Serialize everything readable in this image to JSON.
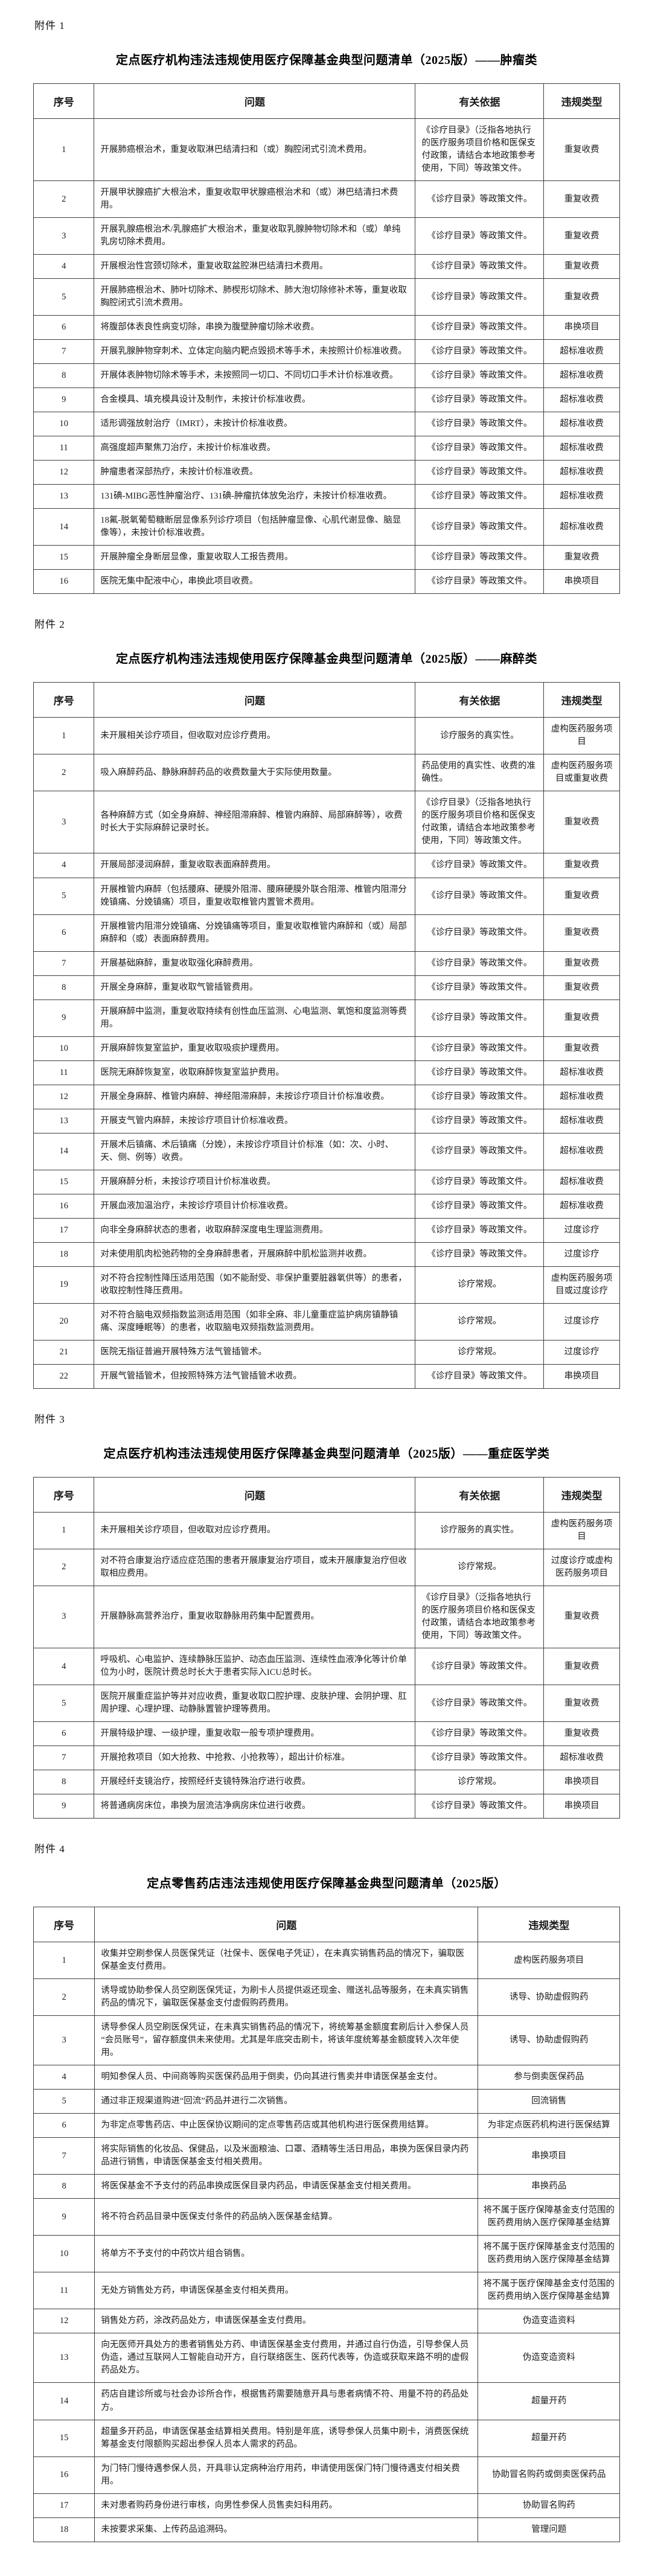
{
  "sections": [
    {
      "attachment_label": "附件 1",
      "title": "定点医疗机构违法违规使用医疗保障基金典型问题清单（2025版）——肿瘤类",
      "columns": [
        "序号",
        "问题",
        "有关依据",
        "违规类型"
      ],
      "col_widths": [
        "9.8%",
        "55.9%",
        "21.8%",
        "12.5%"
      ],
      "col_align": [
        "center",
        "left",
        "center",
        "center"
      ],
      "wrap_left_col": 2,
      "cell_names": [
        "row-number-cell",
        "problem-cell",
        "basis-cell",
        "violation-type-cell"
      ],
      "rows": [
        [
          "1",
          "开展肺癌根治术，重复收取淋巴结清扫和（或）胸腔闭式引流术费用。",
          "《诊疗目录》（泛指各地执行的医疗服务项目价格和医保支付政策，请结合本地政策参考使用，下同）等政策文件。",
          "重复收费"
        ],
        [
          "2",
          "开展甲状腺癌扩大根治术，重复收取甲状腺癌根治术和（或）淋巴结清扫术费用。",
          "《诊疗目录》等政策文件。",
          "重复收费"
        ],
        [
          "3",
          "开展乳腺癌根治术/乳腺癌扩大根治术，重复收取乳腺肿物切除术和（或）单纯乳房切除术费用。",
          "《诊疗目录》等政策文件。",
          "重复收费"
        ],
        [
          "4",
          "开展根治性宫颈切除术，重复收取盆腔淋巴结清扫术费用。",
          "《诊疗目录》等政策文件。",
          "重复收费"
        ],
        [
          "5",
          "开展肺癌根治术、肺叶切除术、肺楔形切除术、肺大泡切除修补术等，重复收取胸腔闭式引流术费用。",
          "《诊疗目录》等政策文件。",
          "重复收费"
        ],
        [
          "6",
          "将腹部体表良性病变切除，串换为腹壁肿瘤切除术收费。",
          "《诊疗目录》等政策文件。",
          "串换项目"
        ],
        [
          "7",
          "开展乳腺肿物穿刺术、立体定向脑内靶点毁损术等手术，未按照计价标准收费。",
          "《诊疗目录》等政策文件。",
          "超标准收费"
        ],
        [
          "8",
          "开展体表肿物切除术等手术，未按照同一切口、不同切口手术计价标准收费。",
          "《诊疗目录》等政策文件。",
          "超标准收费"
        ],
        [
          "9",
          "合金模具、填充模具设计及制作，未按计价标准收费。",
          "《诊疗目录》等政策文件。",
          "超标准收费"
        ],
        [
          "10",
          "适形调强放射治疗（IMRT），未按计价标准收费。",
          "《诊疗目录》等政策文件。",
          "超标准收费"
        ],
        [
          "11",
          "高强度超声聚焦刀治疗，未按计价标准收费。",
          "《诊疗目录》等政策文件。",
          "超标准收费"
        ],
        [
          "12",
          "肿瘤患者深部热疗，未按计价标准收费。",
          "《诊疗目录》等政策文件。",
          "超标准收费"
        ],
        [
          "13",
          "131碘-MIBG恶性肿瘤治疗、131碘-肿瘤抗体放免治疗，未按计价标准收费。",
          "《诊疗目录》等政策文件。",
          "超标准收费"
        ],
        [
          "14",
          "18氟-脱氧葡萄糖断层显像系列诊疗项目（包括肿瘤显像、心肌代谢显像、脑显像等），未按计价标准收费。",
          "《诊疗目录》等政策文件。",
          "超标准收费"
        ],
        [
          "15",
          "开展肿瘤全身断层显像，重复收取人工报告费用。",
          "《诊疗目录》等政策文件。",
          "重复收费"
        ],
        [
          "16",
          "医院无集中配液中心，串换此项目收费。",
          "《诊疗目录》等政策文件。",
          "串换项目"
        ]
      ]
    },
    {
      "attachment_label": "附件 2",
      "title": "定点医疗机构违法违规使用医疗保障基金典型问题清单（2025版）——麻醉类",
      "columns": [
        "序号",
        "问题",
        "有关依据",
        "违规类型"
      ],
      "col_widths": [
        "9.8%",
        "55.9%",
        "21.8%",
        "12.5%"
      ],
      "col_align": [
        "center",
        "left",
        "center",
        "center"
      ],
      "wrap_left_col": 2,
      "cell_names": [
        "row-number-cell",
        "problem-cell",
        "basis-cell",
        "violation-type-cell"
      ],
      "rows": [
        [
          "1",
          "未开展相关诊疗项目，但收取对应诊疗费用。",
          "诊疗服务的真实性。",
          "虚构医药服务项目"
        ],
        [
          "2",
          "吸入麻醉药品、静脉麻醉药品的收费数量大于实际使用数量。",
          "药品使用的真实性、收费的准确性。",
          "虚构医药服务项目或重复收费"
        ],
        [
          "3",
          "各种麻醉方式（如全身麻醉、神经阻滞麻醉、椎管内麻醉、局部麻醉等），收费时长大于实际麻醉记录时长。",
          "《诊疗目录》（泛指各地执行的医疗服务项目价格和医保支付政策，请结合本地政策参考使用，下同）等政策文件。",
          "重复收费"
        ],
        [
          "4",
          "开展局部浸润麻醉，重复收取表面麻醉费用。",
          "《诊疗目录》等政策文件。",
          "重复收费"
        ],
        [
          "5",
          "开展椎管内麻醉（包括腰麻、硬膜外阻滞、腰麻硬膜外联合阻滞、椎管内阻滞分娩镇痛、分娩镇痛）项目，重复收取椎管内置管术费用。",
          "《诊疗目录》等政策文件。",
          "重复收费"
        ],
        [
          "6",
          "开展椎管内阻滞分娩镇痛、分娩镇痛等项目，重复收取椎管内麻醉和（或）局部麻醉和（或）表面麻醉费用。",
          "《诊疗目录》等政策文件。",
          "重复收费"
        ],
        [
          "7",
          "开展基础麻醉，重复收取强化麻醉费用。",
          "《诊疗目录》等政策文件。",
          "重复收费"
        ],
        [
          "8",
          "开展全身麻醉，重复收取气管插管费用。",
          "《诊疗目录》等政策文件。",
          "重复收费"
        ],
        [
          "9",
          "开展麻醉中监测，重复收取持续有创性血压监测、心电监测、氧饱和度监测等费用。",
          "《诊疗目录》等政策文件。",
          "重复收费"
        ],
        [
          "10",
          "开展麻醉恢复室监护，重复收取吸痰护理费用。",
          "《诊疗目录》等政策文件。",
          "重复收费"
        ],
        [
          "11",
          "医院无麻醉恢复室，收取麻醉恢复室监护费用。",
          "《诊疗目录》等政策文件。",
          "超标准收费"
        ],
        [
          "12",
          "开展全身麻醉、椎管内麻醉、神经阻滞麻醉，未按诊疗项目计价标准收费。",
          "《诊疗目录》等政策文件。",
          "超标准收费"
        ],
        [
          "13",
          "开展支气管内麻醉，未按诊疗项目计价标准收费。",
          "《诊疗目录》等政策文件。",
          "超标准收费"
        ],
        [
          "14",
          "开展术后镇痛、术后镇痛（分娩），未按诊疗项目计价标准（如：次、小时、天、侧、例等）收费。",
          "《诊疗目录》等政策文件。",
          "超标准收费"
        ],
        [
          "15",
          "开展麻醉分析，未按诊疗项目计价标准收费。",
          "《诊疗目录》等政策文件。",
          "超标准收费"
        ],
        [
          "16",
          "开展血液加温治疗，未按诊疗项目计价标准收费。",
          "《诊疗目录》等政策文件。",
          "超标准收费"
        ],
        [
          "17",
          "向非全身麻醉状态的患者，收取麻醉深度电生理监测费用。",
          "《诊疗目录》等政策文件。",
          "过度诊疗"
        ],
        [
          "18",
          "对未使用肌肉松弛药物的全身麻醉患者，开展麻醉中肌松监测并收费。",
          "《诊疗目录》等政策文件。",
          "过度诊疗"
        ],
        [
          "19",
          "对不符合控制性降压适用范围（如不能耐受、非保护重要脏器氧供等）的患者，收取控制性降压费用。",
          "诊疗常规。",
          "虚构医药服务项目或过度诊疗"
        ],
        [
          "20",
          "对不符合脑电双频指数监测适用范围（如非全麻、非儿童重症监护病房镇静镇痛、深度睡眠等）的患者，收取脑电双频指数监测费用。",
          "诊疗常规。",
          "过度诊疗"
        ],
        [
          "21",
          "医院无指征普遍开展特殊方法气管插管术。",
          "诊疗常规。",
          "过度诊疗"
        ],
        [
          "22",
          "开展气管插管术，但按照特殊方法气管插管术收费。",
          "《诊疗目录》等政策文件。",
          "串换项目"
        ]
      ]
    },
    {
      "attachment_label": "附件 3",
      "title": "定点医疗机构违法违规使用医疗保障基金典型问题清单（2025版）——重症医学类",
      "columns": [
        "序号",
        "问题",
        "有关依据",
        "违规类型"
      ],
      "col_widths": [
        "9.8%",
        "55.9%",
        "21.8%",
        "12.5%"
      ],
      "col_align": [
        "center",
        "left",
        "center",
        "center"
      ],
      "wrap_left_col": 2,
      "cell_names": [
        "row-number-cell",
        "problem-cell",
        "basis-cell",
        "violation-type-cell"
      ],
      "rows": [
        [
          "1",
          "未开展相关诊疗项目，但收取对应诊疗费用。",
          "诊疗服务的真实性。",
          "虚构医药服务项目"
        ],
        [
          "2",
          "对不符合康复治疗适应症范围的患者开展康复治疗项目，或未开展康复治疗但收取相应费用。",
          "诊疗常规。",
          "过度诊疗或虚构医药服务项目"
        ],
        [
          "3",
          "开展静脉高营养治疗，重复收取静脉用药集中配置费用。",
          "《诊疗目录》（泛指各地执行的医疗服务项目价格和医保支付政策，请结合本地政策参考使用，下同）等政策文件。",
          "重复收费"
        ],
        [
          "4",
          "呼吸机、心电监护、连续静脉压监护、动态血压监测、连续性血液净化等计价单位为小时，医院计费总时长大于患者实际入ICU总时长。",
          "《诊疗目录》等政策文件。",
          "重复收费"
        ],
        [
          "5",
          "医院开展重症监护等并对应收费，重复收取口腔护理、皮肤护理、会阴护理、肛周护理、心理护理、动静脉置管护理等费用。",
          "《诊疗目录》等政策文件。",
          "重复收费"
        ],
        [
          "6",
          "开展特级护理、一级护理，重复收取一般专项护理费用。",
          "《诊疗目录》等政策文件。",
          "重复收费"
        ],
        [
          "7",
          "开展抢救项目（如大抢救、中抢救、小抢救等），超出计价标准。",
          "《诊疗目录》等政策文件。",
          "超标准收费"
        ],
        [
          "8",
          "开展经纤支镜治疗，按照经纤支镜特殊治疗进行收费。",
          "诊疗常规。",
          "串换项目"
        ],
        [
          "9",
          "将普通病房床位，串换为层流洁净病房床位进行收费。",
          "《诊疗目录》等政策文件。",
          "串换项目"
        ]
      ]
    },
    {
      "attachment_label": "附件 4",
      "title": "定点零售药店违法违规使用医疗保障基金典型问题清单（2025版）",
      "columns": [
        "序号",
        "问题",
        "违规类型"
      ],
      "col_widths": [
        "9.8%",
        "66.3%",
        "23.9%"
      ],
      "col_align": [
        "center",
        "left",
        "center"
      ],
      "wrap_left_col": -1,
      "cell_names": [
        "row-number-cell",
        "problem-cell",
        "violation-type-cell"
      ],
      "rows": [
        [
          "1",
          "收集并空刷参保人员医保凭证（社保卡、医保电子凭证），在未真实销售药品的情况下，骗取医保基金支付费用。",
          "虚构医药服务项目"
        ],
        [
          "2",
          "诱导或协助参保人员空刷医保凭证，为刷卡人员提供返还现金、赠送礼品等服务，在未真实销售药品的情况下，骗取医保基金支付虚假购药费用。",
          "诱导、协助虚假购药"
        ],
        [
          "3",
          "诱导参保人员空刷医保凭证，在未真实销售药品的情况下，将统筹基金额度套刷后计入参保人员“会员账号”，留存额度供未来使用。尤其是年底突击刷卡，将该年度统筹基金额度转入次年使用。",
          "诱导、协助虚假购药"
        ],
        [
          "4",
          "明知参保人员、中间商等购买医保药品用于倒卖，仍向其进行售卖并申请医保基金支付。",
          "参与倒卖医保药品"
        ],
        [
          "5",
          "通过非正规渠道购进“回流”药品并进行二次销售。",
          "回流销售"
        ],
        [
          "6",
          "为非定点零售药店、中止医保协议期间的定点零售药店或其他机构进行医保费用结算。",
          "为非定点医药机构进行医保结算"
        ],
        [
          "7",
          "将实际销售的化妆品、保健品，以及米面粮油、口罩、酒精等生活日用品，串换为医保目录内药品进行销售，申请医保基金支付相关费用。",
          "串换项目"
        ],
        [
          "8",
          "将医保基金不予支付的药品串换成医保目录内药品，申请医保基金支付相关费用。",
          "串换药品"
        ],
        [
          "9",
          "将不符合药品目录中医保支付条件的药品纳入医保基金结算。",
          "将不属于医疗保障基金支付范围的医药费用纳入医疗保障基金结算"
        ],
        [
          "10",
          "将单方不予支付的中药饮片组合销售。",
          "将不属于医疗保障基金支付范围的医药费用纳入医疗保障基金结算"
        ],
        [
          "11",
          "无处方销售处方药，申请医保基金支付相关费用。",
          "将不属于医疗保障基金支付范围的医药费用纳入医疗保障基金结算"
        ],
        [
          "12",
          "销售处方药，涂改药品处方，申请医保基金支付费用。",
          "伪造变造资料"
        ],
        [
          "13",
          "向无医师开具处方的患者销售处方药、申请医保基金支付费用，并通过自行伪造，引导参保人员伪造，通过互联网人工智能自动开方，自行联络医生、医药代表等，伪造或获取来路不明的虚假药品处方。",
          "伪造变造资料"
        ],
        [
          "14",
          "药店自建诊所或与社会办诊所合作，根据售药需要随意开具与患者病情不符、用量不符的药品处方。",
          "超量开药"
        ],
        [
          "15",
          "超量多开药品，申请医保基金结算相关费用。特别是年底，诱导参保人员集中刷卡，消费医保统筹基金支付限额购买超出参保人员本人需求的药品。",
          "超量开药"
        ],
        [
          "16",
          "为门特门慢待遇参保人员，开具非认定病种治疗用药，申请使用医保门特门慢待遇支付相关费用。",
          "协助冒名购药或倒卖医保药品"
        ],
        [
          "17",
          "未对患者购药身份进行审核，向男性参保人员售卖妇科用药。",
          "协助冒名购药"
        ],
        [
          "18",
          "未按要求采集、上传药品追溯码。",
          "管理问题"
        ]
      ]
    }
  ]
}
